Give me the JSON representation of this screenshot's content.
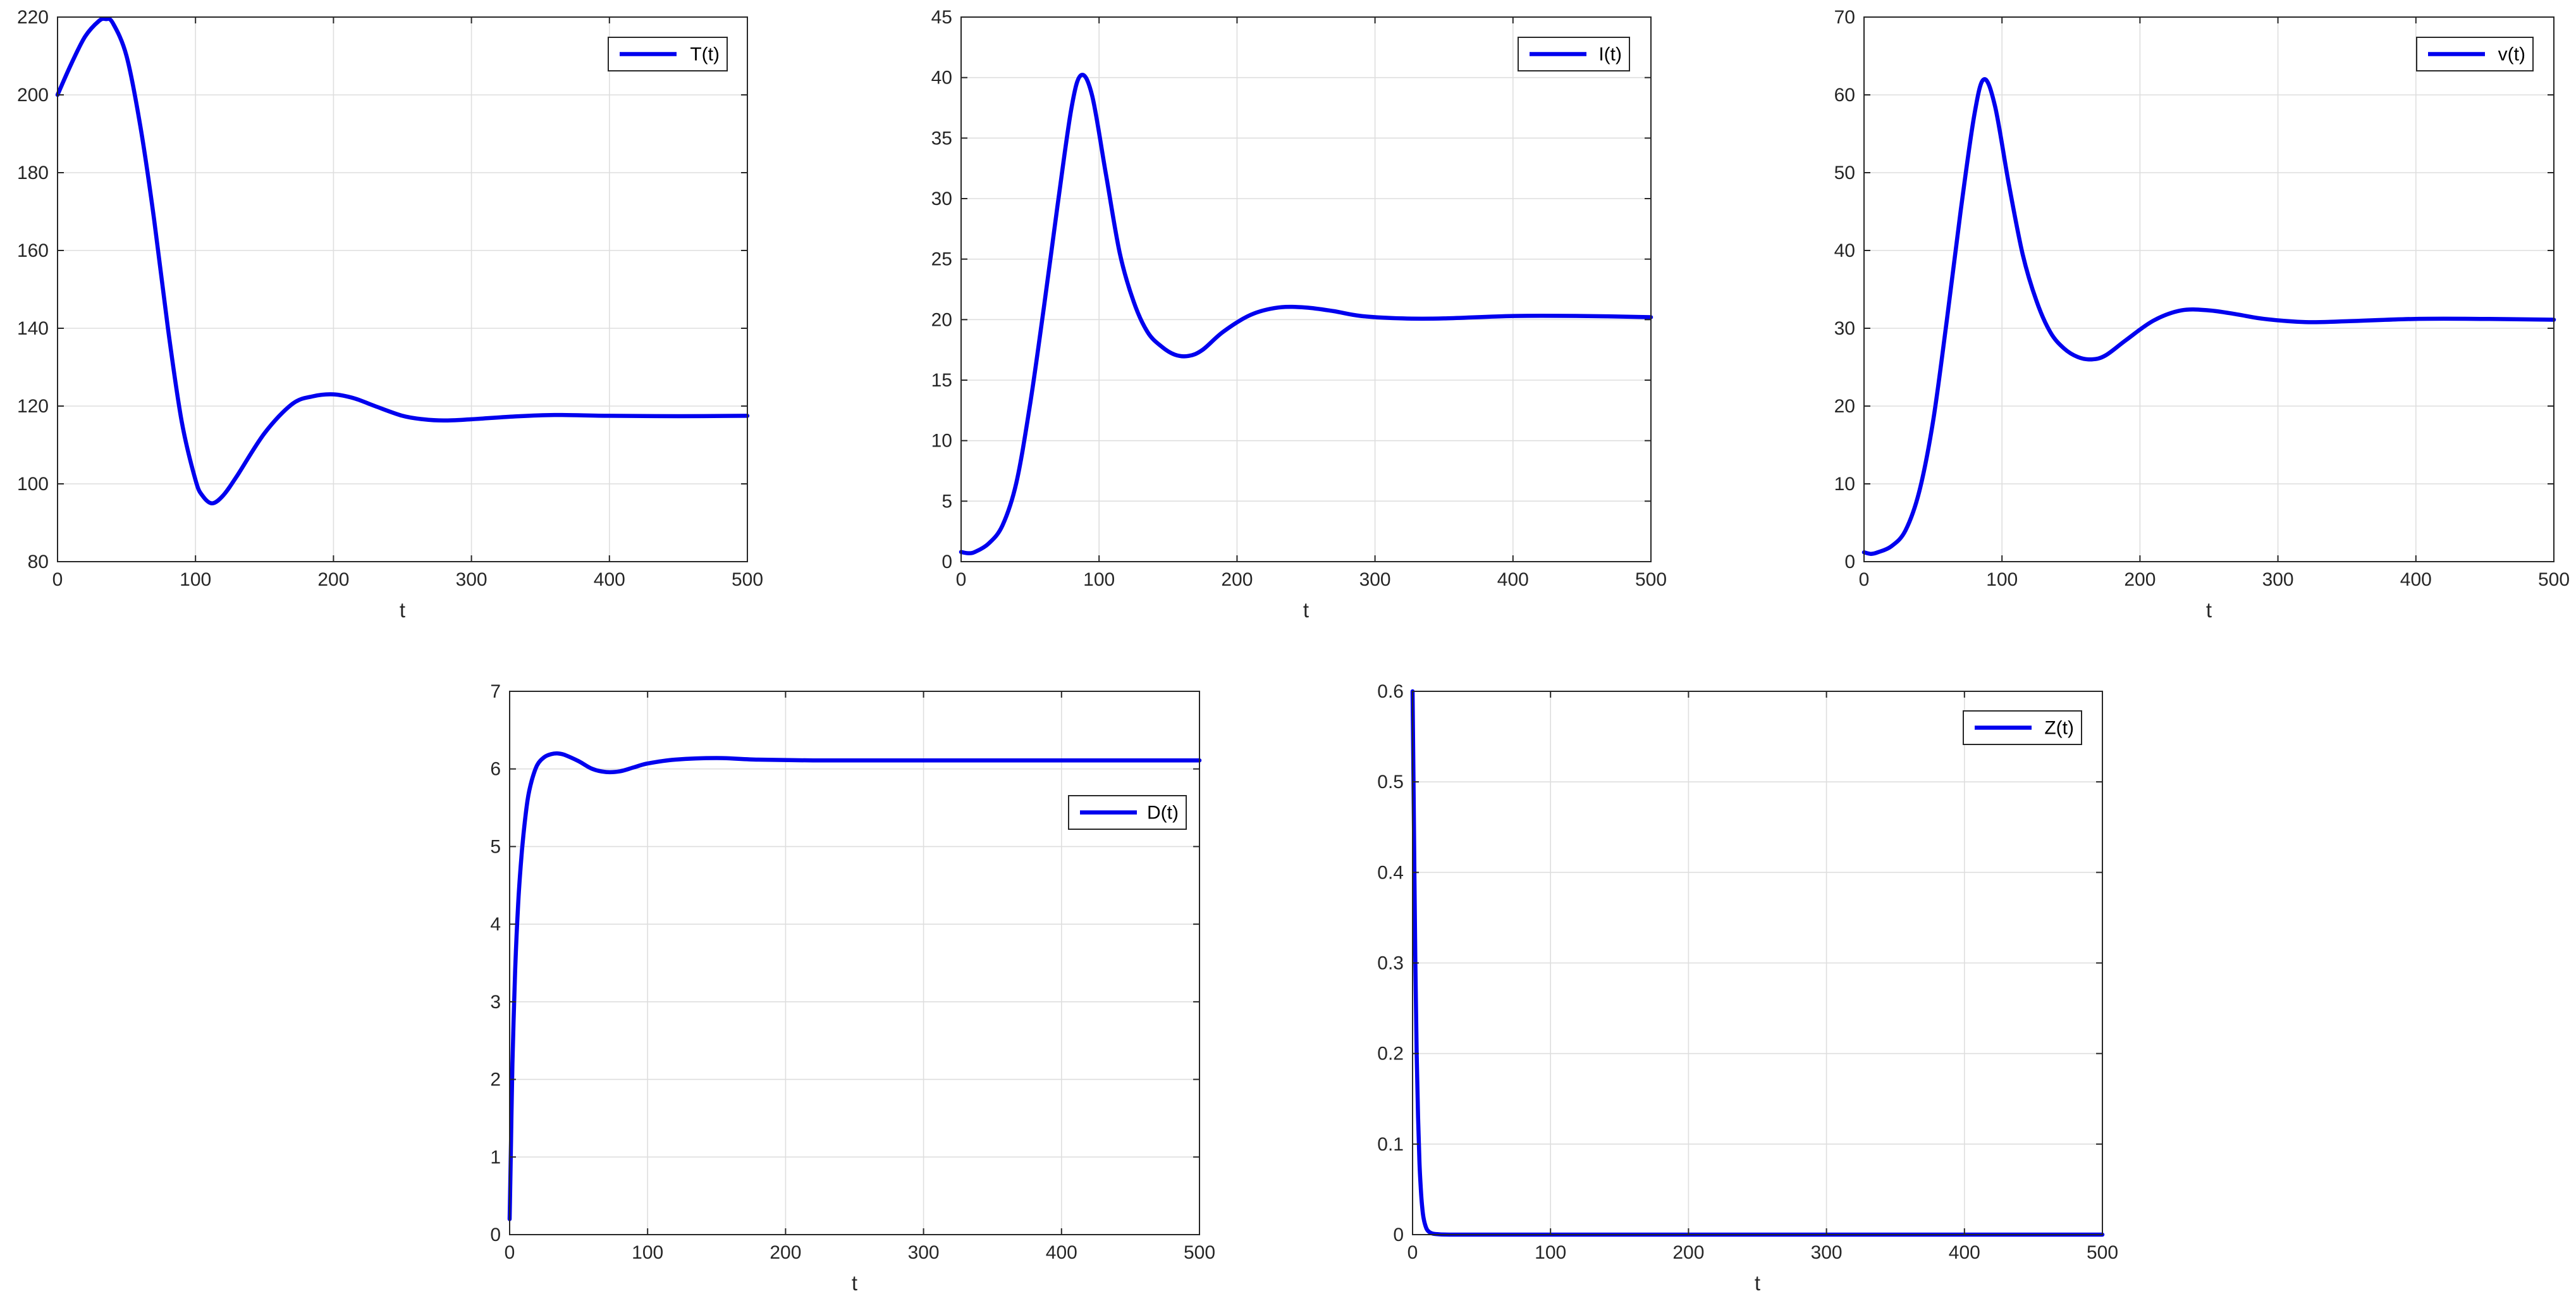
{
  "figure": {
    "series_color": "#0000ee"
  },
  "chart_data": [
    {
      "type": "line",
      "xlabel": "t",
      "ylabel": "",
      "xlim": [
        0,
        500
      ],
      "ylim": [
        80,
        220
      ],
      "xticks": [
        0,
        100,
        200,
        300,
        400,
        500
      ],
      "yticks": [
        80,
        100,
        120,
        140,
        160,
        180,
        200,
        220
      ],
      "grid": true,
      "legend_position": "top-right",
      "series": [
        {
          "name": "T(t)",
          "x": [
            0,
            10,
            20,
            30,
            35,
            40,
            50,
            60,
            70,
            80,
            90,
            100,
            105,
            112,
            120,
            130,
            150,
            170,
            185,
            200,
            215,
            230,
            250,
            265,
            280,
            300,
            330,
            360,
            400,
            450,
            500
          ],
          "y": [
            200,
            208,
            215,
            219,
            219.5,
            218.5,
            210,
            192,
            168,
            140,
            116,
            101,
            97,
            95,
            97,
            102,
            113,
            120.5,
            122.5,
            123,
            122,
            120,
            117.5,
            116.6,
            116.3,
            116.6,
            117.3,
            117.7,
            117.5,
            117.4,
            117.5
          ]
        }
      ]
    },
    {
      "type": "line",
      "xlabel": "t",
      "ylabel": "",
      "xlim": [
        0,
        500
      ],
      "ylim": [
        0,
        45
      ],
      "xticks": [
        0,
        100,
        200,
        300,
        400,
        500
      ],
      "yticks": [
        0,
        5,
        10,
        15,
        20,
        25,
        30,
        35,
        40,
        45
      ],
      "grid": true,
      "legend_position": "top-right",
      "series": [
        {
          "name": "I(t)",
          "x": [
            0,
            5,
            10,
            20,
            30,
            40,
            50,
            60,
            70,
            80,
            87,
            95,
            105,
            115,
            125,
            135,
            145,
            155,
            165,
            175,
            190,
            210,
            230,
            250,
            270,
            290,
            320,
            350,
            400,
            450,
            500
          ],
          "y": [
            0.8,
            0.7,
            0.8,
            1.5,
            3,
            6.5,
            13,
            21,
            29.5,
            37.5,
            40.2,
            38.5,
            32,
            25.5,
            21.5,
            19,
            17.8,
            17.1,
            17,
            17.5,
            19,
            20.4,
            21,
            21,
            20.7,
            20.3,
            20.1,
            20.1,
            20.3,
            20.3,
            20.2
          ]
        }
      ]
    },
    {
      "type": "line",
      "xlabel": "t",
      "ylabel": "",
      "xlim": [
        0,
        500
      ],
      "ylim": [
        0,
        70
      ],
      "xticks": [
        0,
        100,
        200,
        300,
        400,
        500
      ],
      "yticks": [
        0,
        10,
        20,
        30,
        40,
        50,
        60,
        70
      ],
      "grid": true,
      "legend_position": "top-right",
      "series": [
        {
          "name": "v(t)",
          "x": [
            0,
            5,
            10,
            20,
            30,
            40,
            50,
            60,
            70,
            80,
            87,
            95,
            105,
            115,
            125,
            135,
            145,
            155,
            165,
            175,
            190,
            210,
            230,
            250,
            270,
            290,
            320,
            350,
            400,
            450,
            500
          ],
          "y": [
            1.2,
            1,
            1.2,
            2,
            4,
            9,
            18,
            31,
            45,
            57.5,
            62,
            58.5,
            48.5,
            39.5,
            33.5,
            29.5,
            27.4,
            26.3,
            26,
            26.5,
            28.5,
            31,
            32.3,
            32.3,
            31.8,
            31.2,
            30.8,
            30.9,
            31.2,
            31.2,
            31.1
          ]
        }
      ]
    },
    {
      "type": "line",
      "xlabel": "t",
      "ylabel": "",
      "xlim": [
        0,
        500
      ],
      "ylim": [
        0,
        7
      ],
      "xticks": [
        0,
        100,
        200,
        300,
        400,
        500
      ],
      "yticks": [
        0,
        1,
        2,
        3,
        4,
        5,
        6,
        7
      ],
      "grid": true,
      "legend_position": "top-right",
      "series": [
        {
          "name": "D(t)",
          "x": [
            0,
            1,
            2,
            4,
            6,
            8,
            10,
            13,
            16,
            20,
            25,
            30,
            35,
            40,
            50,
            60,
            70,
            80,
            90,
            100,
            120,
            150,
            180,
            220,
            260,
            300,
            350,
            400,
            450,
            500
          ],
          "y": [
            0.2,
            1.2,
            2.2,
            3.4,
            4.2,
            4.75,
            5.15,
            5.6,
            5.85,
            6.05,
            6.15,
            6.19,
            6.2,
            6.18,
            6.1,
            6.0,
            5.96,
            5.97,
            6.02,
            6.07,
            6.12,
            6.14,
            6.12,
            6.11,
            6.11,
            6.11,
            6.11,
            6.11,
            6.11,
            6.11
          ]
        }
      ]
    },
    {
      "type": "line",
      "xlabel": "t",
      "ylabel": "",
      "xlim": [
        0,
        500
      ],
      "ylim": [
        0,
        0.6
      ],
      "xticks": [
        0,
        100,
        200,
        300,
        400,
        500
      ],
      "yticks": [
        0,
        0.1,
        0.2,
        0.3,
        0.4,
        0.5,
        0.6
      ],
      "grid": true,
      "legend_position": "top-right",
      "series": [
        {
          "name": "Z(t)",
          "x": [
            0,
            1,
            2,
            3,
            4,
            5,
            6,
            7,
            8,
            10,
            12,
            15,
            20,
            30,
            50,
            100,
            200,
            300,
            400,
            500
          ],
          "y": [
            0.6,
            0.45,
            0.3,
            0.2,
            0.13,
            0.08,
            0.05,
            0.03,
            0.018,
            0.007,
            0.003,
            0.001,
            0.0003,
            0,
            0,
            0,
            0,
            0,
            0,
            0
          ]
        }
      ]
    }
  ]
}
